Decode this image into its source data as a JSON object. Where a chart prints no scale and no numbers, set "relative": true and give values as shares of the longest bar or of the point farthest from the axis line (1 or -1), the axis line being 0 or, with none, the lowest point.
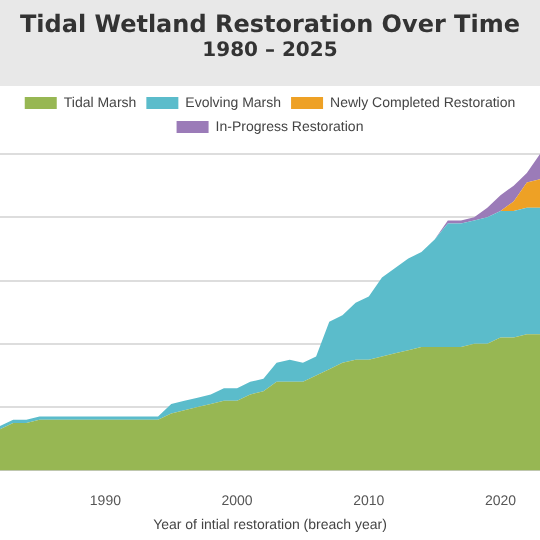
{
  "chart_data": {
    "type": "area",
    "title": "Tidal Wetland Restoration Over Time",
    "subtitle": "1980 – 2025",
    "xlabel": "Year of intial restoration (breach year)",
    "x": [
      1982,
      1983,
      1984,
      1985,
      1986,
      1987,
      1988,
      1989,
      1990,
      1991,
      1992,
      1993,
      1994,
      1995,
      1996,
      1997,
      1998,
      1999,
      2000,
      2001,
      2002,
      2003,
      2004,
      2005,
      2006,
      2007,
      2008,
      2009,
      2010,
      2011,
      2012,
      2013,
      2014,
      2015,
      2016,
      2017,
      2018,
      2019,
      2020,
      2021,
      2022,
      2023
    ],
    "stacked": true,
    "relative": true,
    "series": [
      {
        "name": "Tidal Marsh",
        "color": "#97b753",
        "values": [
          0.13,
          0.15,
          0.15,
          0.16,
          0.16,
          0.16,
          0.16,
          0.16,
          0.16,
          0.16,
          0.16,
          0.16,
          0.16,
          0.18,
          0.19,
          0.2,
          0.21,
          0.22,
          0.22,
          0.24,
          0.25,
          0.28,
          0.28,
          0.28,
          0.3,
          0.32,
          0.34,
          0.35,
          0.35,
          0.36,
          0.37,
          0.38,
          0.39,
          0.39,
          0.39,
          0.39,
          0.4,
          0.4,
          0.42,
          0.42,
          0.43,
          0.43
        ]
      },
      {
        "name": "Evolving Marsh",
        "color": "#5bbccb",
        "values": [
          0.01,
          0.01,
          0.01,
          0.01,
          0.01,
          0.01,
          0.01,
          0.01,
          0.01,
          0.01,
          0.01,
          0.01,
          0.01,
          0.03,
          0.03,
          0.03,
          0.03,
          0.04,
          0.04,
          0.04,
          0.04,
          0.06,
          0.07,
          0.06,
          0.06,
          0.15,
          0.15,
          0.18,
          0.2,
          0.25,
          0.27,
          0.29,
          0.3,
          0.34,
          0.39,
          0.39,
          0.39,
          0.4,
          0.4,
          0.4,
          0.4,
          0.4
        ]
      },
      {
        "name": "Newly Completed Restoration",
        "color": "#eea125",
        "values": [
          null,
          null,
          null,
          null,
          null,
          null,
          null,
          null,
          null,
          null,
          null,
          null,
          null,
          null,
          null,
          null,
          null,
          null,
          null,
          null,
          null,
          null,
          null,
          null,
          null,
          null,
          null,
          null,
          null,
          null,
          null,
          null,
          null,
          null,
          null,
          null,
          null,
          null,
          0,
          0.03,
          0.08,
          0.09
        ]
      },
      {
        "name": "In-Progress Restoration",
        "color": "#9b7bb8",
        "values": [
          null,
          null,
          null,
          null,
          null,
          null,
          null,
          null,
          null,
          null,
          null,
          null,
          null,
          null,
          null,
          null,
          null,
          null,
          null,
          null,
          null,
          null,
          null,
          null,
          null,
          null,
          null,
          null,
          null,
          null,
          null,
          null,
          null,
          0,
          0.01,
          0.01,
          0.01,
          0.03,
          0.05,
          0.05,
          0.03,
          0.08
        ]
      }
    ],
    "xlim": [
      1982,
      2023
    ],
    "xticks": [
      1990,
      2000,
      2010,
      2020
    ],
    "grid": "y",
    "legend": "top"
  }
}
